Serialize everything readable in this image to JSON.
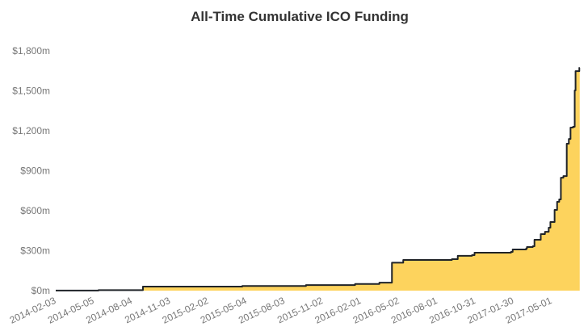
{
  "chart_data": {
    "type": "area",
    "title": "All-Time Cumulative ICO Funding",
    "xlabel": "",
    "ylabel": "",
    "interpolation": "step-after",
    "ylim": [
      0,
      1800
    ],
    "y_unit": "$ millions",
    "yticks": [
      0,
      300,
      600,
      900,
      1200,
      1500,
      1800
    ],
    "ytick_labels": [
      "$0m",
      "$300m",
      "$600m",
      "$900m",
      "$1,200m",
      "$1,500m",
      "$1,800m"
    ],
    "xtick_labels": [
      "2014-02-03",
      "2014-05-05",
      "2014-08-04",
      "2014-11-03",
      "2015-02-02",
      "2015-05-04",
      "2015-08-03",
      "2015-11-02",
      "2016-02-01",
      "2016-05-02",
      "2016-08-01",
      "2016-10-31",
      "2017-01-30",
      "2017-05-01"
    ],
    "grid": false,
    "colors": {
      "fill": "#fdd35d",
      "line": "#1f2328"
    },
    "series": [
      {
        "x": [
          "2014-02-03",
          "2014-05-16",
          "2014-08-30",
          "2015-04-24",
          "2015-09-23",
          "2016-01-18",
          "2016-03-16",
          "2016-04-15",
          "2016-05-12",
          "2016-09-05",
          "2016-09-19",
          "2016-10-23",
          "2016-10-29",
          "2017-01-24",
          "2017-01-28",
          "2017-03-01",
          "2017-03-03",
          "2017-03-17",
          "2017-03-21",
          "2017-04-05",
          "2017-04-15",
          "2017-04-24",
          "2017-04-28",
          "2017-05-08",
          "2017-05-14",
          "2017-05-19",
          "2017-05-23",
          "2017-05-29",
          "2017-06-06",
          "2017-06-11",
          "2017-06-15",
          "2017-06-21",
          "2017-06-25",
          "2017-06-27",
          "2017-07-06"
        ],
        "y": [
          1,
          4,
          30,
          35,
          42,
          50,
          60,
          210,
          230,
          236,
          261,
          267,
          285,
          291,
          309,
          315,
          327,
          333,
          382,
          424,
          442,
          473,
          515,
          606,
          667,
          685,
          848,
          860,
          1103,
          1139,
          1224,
          1230,
          1503,
          1648,
          1673
        ]
      }
    ]
  }
}
